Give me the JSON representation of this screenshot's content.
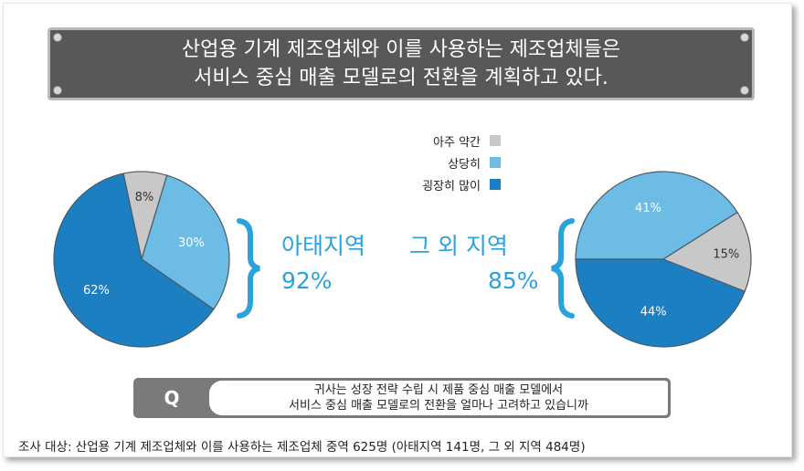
{
  "title": {
    "line1": "산업용 기계 제조업체와 이를 사용하는 제조업체들은",
    "line2": "서비스 중심 매출 모델로의 전환을 계획하고 있다."
  },
  "legend": [
    {
      "label": "아주 약간",
      "color": "#c8c8c8"
    },
    {
      "label": "상당히",
      "color": "#6cbce6"
    },
    {
      "label": "굉장히 많이",
      "color": "#1b7fc2"
    }
  ],
  "chart_data": [
    {
      "type": "pie",
      "region": "아태지역",
      "total_label": "92%",
      "slices": [
        {
          "series": "아주 약간",
          "value": 8,
          "label": "8%"
        },
        {
          "series": "상당히",
          "value": 30,
          "label": "30%"
        },
        {
          "series": "굉장히 많이",
          "value": 62,
          "label": "62%"
        }
      ]
    },
    {
      "type": "pie",
      "region": "그 외 지역",
      "total_label": "85%",
      "slices": [
        {
          "series": "상당히",
          "value": 41,
          "label": "41%"
        },
        {
          "series": "아주 약간",
          "value": 15,
          "label": "15%"
        },
        {
          "series": "굉장히 많이",
          "value": 44,
          "label": "44%"
        }
      ]
    }
  ],
  "question": {
    "letter": "Q",
    "line1": "귀사는 성장 전략 수립 시 제품 중심 매출 모델에서",
    "line2": "서비스 중심 매출 모델로의 전환을 얼마나 고려하고 있습니까"
  },
  "footnote": "조사 대상: 산업용 기계 제조업체와 이를 사용하는 제조업체 중역 625명 (아태지역 141명, 그 외 지역 484명)"
}
